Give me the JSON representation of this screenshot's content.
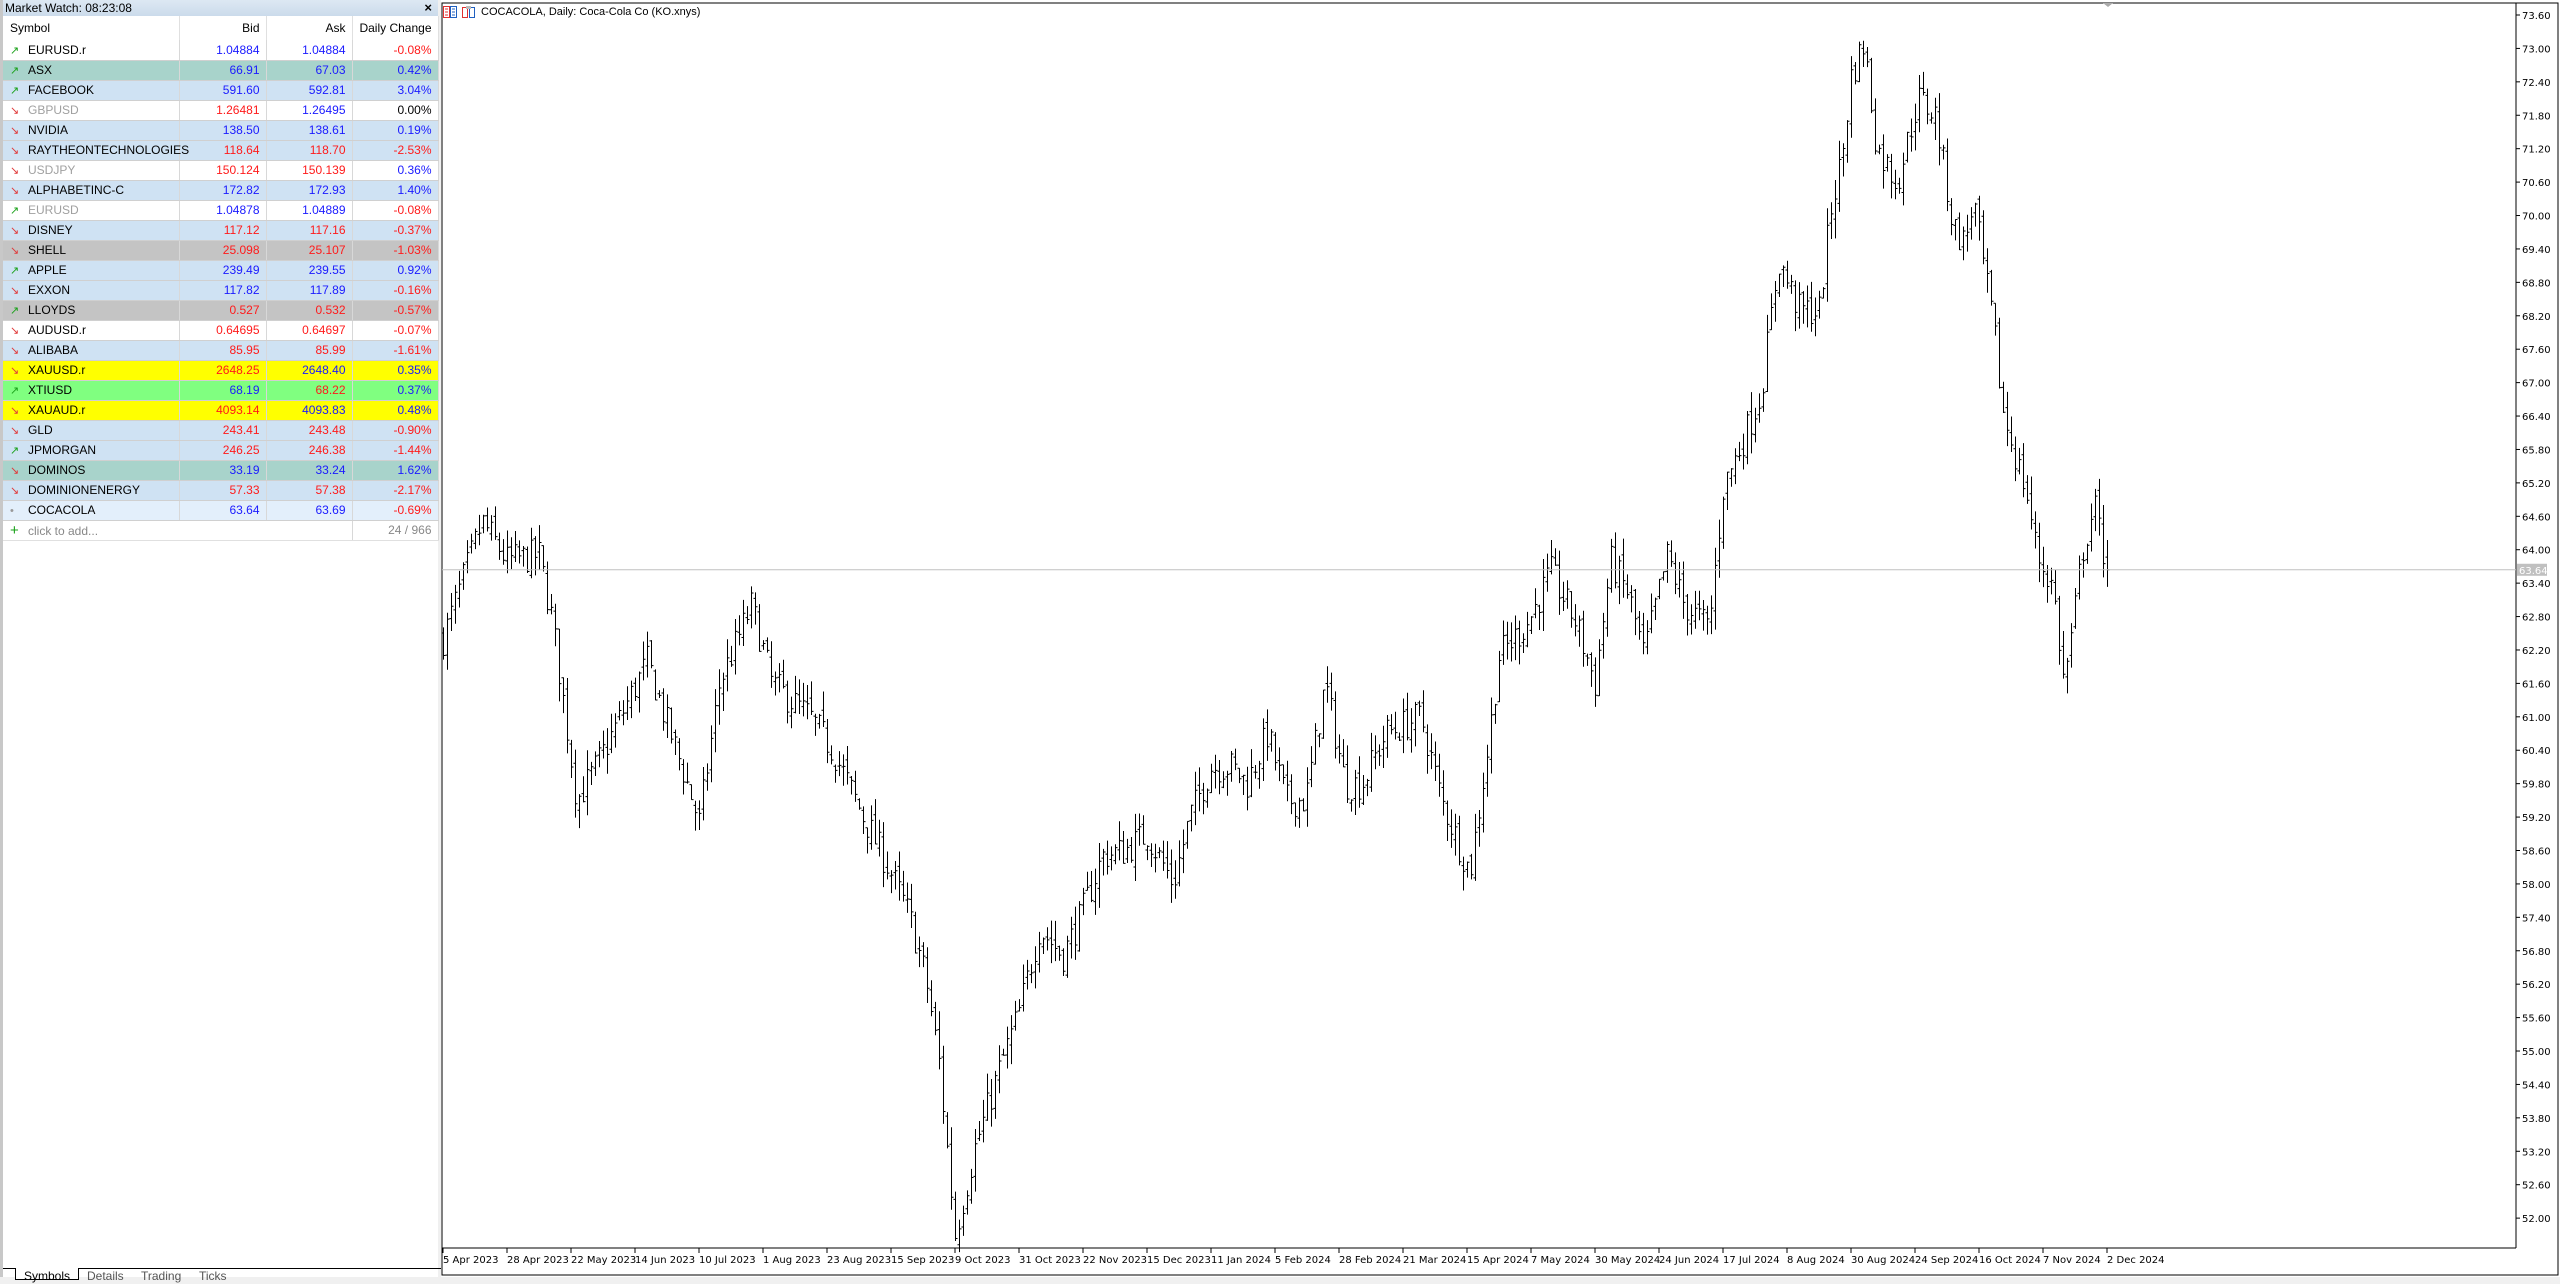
{
  "market_watch": {
    "title": "Market Watch: 08:23:08",
    "close_label": "×",
    "columns": [
      "Symbol",
      "Bid",
      "Ask",
      "Daily Change"
    ],
    "rows": [
      {
        "symbol": "EURUSD.r",
        "dir": "up",
        "bid": "1.04884",
        "ask": "1.04884",
        "change": "-0.08%",
        "c": [
          "up",
          "up",
          "down"
        ],
        "bg": "#ffffff"
      },
      {
        "symbol": "ASX",
        "dir": "up",
        "bid": "66.91",
        "ask": "67.03",
        "change": "0.42%",
        "c": [
          "up",
          "up",
          "up"
        ],
        "bg": "#a8d3cb"
      },
      {
        "symbol": "FACEBOOK",
        "dir": "up",
        "bid": "591.60",
        "ask": "592.81",
        "change": "3.04%",
        "c": [
          "up",
          "up",
          "up"
        ],
        "bg": "#cfe2f3"
      },
      {
        "symbol": "GBPUSD",
        "dir": "down",
        "closed": true,
        "bid": "1.26481",
        "ask": "1.26495",
        "change": "0.00%",
        "c": [
          "down",
          "up",
          "flat"
        ],
        "bg": "#ffffff"
      },
      {
        "symbol": "NVIDIA",
        "dir": "down",
        "bid": "138.50",
        "ask": "138.61",
        "change": "0.19%",
        "c": [
          "up",
          "up",
          "up"
        ],
        "bg": "#cfe2f3"
      },
      {
        "symbol": "RAYTHEONTECHNOLOGIES",
        "dir": "down",
        "bid": "118.64",
        "ask": "118.70",
        "change": "-2.53%",
        "c": [
          "down",
          "down",
          "down"
        ],
        "bg": "#cfe2f3"
      },
      {
        "symbol": "USDJPY",
        "dir": "down",
        "closed": true,
        "bid": "150.124",
        "ask": "150.139",
        "change": "0.36%",
        "c": [
          "down",
          "down",
          "up"
        ],
        "bg": "#ffffff"
      },
      {
        "symbol": "ALPHABETINC-C",
        "dir": "down",
        "bid": "172.82",
        "ask": "172.93",
        "change": "1.40%",
        "c": [
          "up",
          "up",
          "up"
        ],
        "bg": "#cfe2f3"
      },
      {
        "symbol": "EURUSD",
        "dir": "up",
        "closed": true,
        "bid": "1.04878",
        "ask": "1.04889",
        "change": "-0.08%",
        "c": [
          "up",
          "up",
          "down"
        ],
        "bg": "#ffffff"
      },
      {
        "symbol": "DISNEY",
        "dir": "down",
        "bid": "117.12",
        "ask": "117.16",
        "change": "-0.37%",
        "c": [
          "down",
          "down",
          "down"
        ],
        "bg": "#cfe2f3"
      },
      {
        "symbol": "SHELL",
        "dir": "down",
        "bid": "25.098",
        "ask": "25.107",
        "change": "-1.03%",
        "c": [
          "down",
          "down",
          "down"
        ],
        "bg": "#c4c4c4"
      },
      {
        "symbol": "APPLE",
        "dir": "up",
        "bid": "239.49",
        "ask": "239.55",
        "change": "0.92%",
        "c": [
          "up",
          "up",
          "up"
        ],
        "bg": "#cfe2f3"
      },
      {
        "symbol": "EXXON",
        "dir": "down",
        "bid": "117.82",
        "ask": "117.89",
        "change": "-0.16%",
        "c": [
          "up",
          "up",
          "down"
        ],
        "bg": "#cfe2f3"
      },
      {
        "symbol": "LLOYDS",
        "dir": "up",
        "bid": "0.527",
        "ask": "0.532",
        "change": "-0.57%",
        "c": [
          "down",
          "down",
          "down"
        ],
        "bg": "#c4c4c4"
      },
      {
        "symbol": "AUDUSD.r",
        "dir": "down",
        "bid": "0.64695",
        "ask": "0.64697",
        "change": "-0.07%",
        "c": [
          "down",
          "down",
          "down"
        ],
        "bg": "#ffffff"
      },
      {
        "symbol": "ALIBABA",
        "dir": "down",
        "bid": "85.95",
        "ask": "85.99",
        "change": "-1.61%",
        "c": [
          "down",
          "down",
          "down"
        ],
        "bg": "#cfe2f3"
      },
      {
        "symbol": "XAUUSD.r",
        "dir": "down",
        "bid": "2648.25",
        "ask": "2648.40",
        "change": "0.35%",
        "c": [
          "down",
          "up",
          "up"
        ],
        "bg": "#ffff00"
      },
      {
        "symbol": "XTIUSD",
        "dir": "up",
        "bid": "68.19",
        "ask": "68.22",
        "change": "0.37%",
        "c": [
          "up",
          "down",
          "up"
        ],
        "bg": "#80ff80"
      },
      {
        "symbol": "XAUAUD.r",
        "dir": "down",
        "bid": "4093.14",
        "ask": "4093.83",
        "change": "0.48%",
        "c": [
          "down",
          "up",
          "up"
        ],
        "bg": "#ffff00"
      },
      {
        "symbol": "GLD",
        "dir": "down",
        "bid": "243.41",
        "ask": "243.48",
        "change": "-0.90%",
        "c": [
          "down",
          "down",
          "down"
        ],
        "bg": "#cfe2f3"
      },
      {
        "symbol": "JPMORGAN",
        "dir": "up",
        "bid": "246.25",
        "ask": "246.38",
        "change": "-1.44%",
        "c": [
          "down",
          "down",
          "down"
        ],
        "bg": "#cfe2f3"
      },
      {
        "symbol": "DOMINOS",
        "dir": "down",
        "bid": "33.19",
        "ask": "33.24",
        "change": "1.62%",
        "c": [
          "up",
          "up",
          "up"
        ],
        "bg": "#a8d3cb"
      },
      {
        "symbol": "DOMINIONENERGY",
        "dir": "down",
        "bid": "57.33",
        "ask": "57.38",
        "change": "-2.17%",
        "c": [
          "down",
          "down",
          "down"
        ],
        "bg": "#cfe2f3"
      },
      {
        "symbol": "COCACOLA",
        "dir": "flat",
        "bid": "63.64",
        "ask": "63.69",
        "change": "-0.69%",
        "c": [
          "up",
          "up",
          "down"
        ],
        "bg": "#e3effb"
      }
    ],
    "add_label": "click to add...",
    "count_label": "24 / 966",
    "tabs": [
      "Symbols",
      "Details",
      "Trading",
      "Ticks"
    ]
  },
  "chart": {
    "title": "COCACOLA, Daily:  Coca-Cola Co (KO.xnys)",
    "icons": [
      "market-depth-icon",
      "one-click-trading-icon"
    ]
  },
  "chart_data": {
    "type": "ohlc",
    "symbol": "COCACOLA",
    "timeframe": "Daily",
    "current_price": 63.64,
    "current_price_label": "63.64",
    "ylim": [
      51.7,
      73.7
    ],
    "y_ticks": [
      "73.60",
      "73.00",
      "72.40",
      "71.80",
      "71.20",
      "70.60",
      "70.00",
      "69.40",
      "68.80",
      "68.20",
      "67.60",
      "67.00",
      "66.40",
      "65.80",
      "65.20",
      "64.60",
      "64.00",
      "63.40",
      "62.80",
      "62.20",
      "61.60",
      "61.00",
      "60.40",
      "59.80",
      "59.20",
      "58.60",
      "58.00",
      "57.40",
      "56.80",
      "56.20",
      "55.60",
      "55.00",
      "54.40",
      "53.80",
      "53.20",
      "52.60",
      "52.00"
    ],
    "x_ticks": [
      "5 Apr 2023",
      "28 Apr 2023",
      "22 May 2023",
      "14 Jun 2023",
      "10 Jul 2023",
      "1 Aug 2023",
      "23 Aug 2023",
      "15 Sep 2023",
      "9 Oct 2023",
      "31 Oct 2023",
      "22 Nov 2023",
      "15 Dec 2023",
      "11 Jan 2024",
      "5 Feb 2024",
      "28 Feb 2024",
      "21 Mar 2024",
      "15 Apr 2024",
      "7 May 2024",
      "30 May 2024",
      "24 Jun 2024",
      "17 Jul 2024",
      "8 Aug 2024",
      "30 Aug 2024",
      "24 Sep 2024",
      "16 Oct 2024",
      "7 Nov 2024",
      "2 Dec 2024"
    ],
    "price_path": [
      [
        "2023-04-05",
        62.4
      ],
      [
        "2023-04-19",
        64.5
      ],
      [
        "2023-04-28",
        63.8
      ],
      [
        "2023-05-10",
        63.9
      ],
      [
        "2023-05-15",
        62.7
      ],
      [
        "2023-05-19",
        61.3
      ],
      [
        "2023-05-24",
        59.5
      ],
      [
        "2023-05-31",
        60.1
      ],
      [
        "2023-06-19",
        62.0
      ],
      [
        "2023-06-26",
        61.0
      ],
      [
        "2023-07-03",
        60.1
      ],
      [
        "2023-07-10",
        59.1
      ],
      [
        "2023-07-17",
        61.6
      ],
      [
        "2023-07-28",
        63.0
      ],
      [
        "2023-08-04",
        61.6
      ],
      [
        "2023-08-17",
        61.0
      ],
      [
        "2023-08-25",
        60.4
      ],
      [
        "2023-09-05",
        59.2
      ],
      [
        "2023-09-14",
        58.3
      ],
      [
        "2023-09-22",
        57.4
      ],
      [
        "2023-09-28",
        56.3
      ],
      [
        "2023-10-03",
        54.8
      ],
      [
        "2023-10-09",
        51.7
      ],
      [
        "2023-10-16",
        53.3
      ],
      [
        "2023-10-25",
        54.8
      ],
      [
        "2023-10-31",
        55.7
      ],
      [
        "2023-11-07",
        57.2
      ],
      [
        "2023-11-15",
        56.7
      ],
      [
        "2023-11-21",
        57.4
      ],
      [
        "2023-11-29",
        58.5
      ],
      [
        "2023-12-07",
        58.6
      ],
      [
        "2023-12-15",
        58.9
      ],
      [
        "2023-12-26",
        58.0
      ],
      [
        "2024-01-02",
        59.2
      ],
      [
        "2024-01-11",
        60.1
      ],
      [
        "2024-01-19",
        60.1
      ],
      [
        "2024-01-25",
        59.8
      ],
      [
        "2024-02-02",
        60.7
      ],
      [
        "2024-02-09",
        59.5
      ],
      [
        "2024-02-16",
        59.5
      ],
      [
        "2024-02-23",
        61.6
      ],
      [
        "2024-03-01",
        59.8
      ],
      [
        "2024-03-07",
        59.8
      ],
      [
        "2024-03-15",
        60.7
      ],
      [
        "2024-03-28",
        61.0
      ],
      [
        "2024-04-05",
        59.5
      ],
      [
        "2024-04-16",
        58.2
      ],
      [
        "2024-04-22",
        60.4
      ],
      [
        "2024-04-26",
        62.1
      ],
      [
        "2024-05-06",
        62.7
      ],
      [
        "2024-05-14",
        63.6
      ],
      [
        "2024-05-23",
        62.7
      ],
      [
        "2024-05-30",
        61.6
      ],
      [
        "2024-06-05",
        63.8
      ],
      [
        "2024-06-12",
        63.2
      ],
      [
        "2024-06-18",
        62.1
      ],
      [
        "2024-06-27",
        63.9
      ],
      [
        "2024-07-03",
        63.0
      ],
      [
        "2024-07-12",
        62.6
      ],
      [
        "2024-07-17",
        65.1
      ],
      [
        "2024-07-24",
        66.0
      ],
      [
        "2024-07-30",
        66.8
      ],
      [
        "2024-08-05",
        69.2
      ],
      [
        "2024-08-12",
        68.3
      ],
      [
        "2024-08-19",
        68.3
      ],
      [
        "2024-08-23",
        70.1
      ],
      [
        "2024-08-27",
        71.1
      ],
      [
        "2024-08-30",
        72.5
      ],
      [
        "2024-09-04",
        73.1
      ],
      [
        "2024-09-09",
        71.2
      ],
      [
        "2024-09-17",
        70.6
      ],
      [
        "2024-09-25",
        72.1
      ],
      [
        "2024-10-01",
        71.8
      ],
      [
        "2024-10-07",
        69.8
      ],
      [
        "2024-10-11",
        69.5
      ],
      [
        "2024-10-14",
        70.3
      ],
      [
        "2024-10-18",
        68.9
      ],
      [
        "2024-10-21",
        68.0
      ],
      [
        "2024-10-24",
        66.5
      ],
      [
        "2024-10-30",
        65.4
      ],
      [
        "2024-11-01",
        65.1
      ],
      [
        "2024-11-05",
        63.9
      ],
      [
        "2024-11-11",
        63.3
      ],
      [
        "2024-11-15",
        61.6
      ],
      [
        "2024-11-18",
        62.4
      ],
      [
        "2024-11-22",
        63.9
      ],
      [
        "2024-11-27",
        64.8
      ],
      [
        "2024-12-02",
        63.6
      ]
    ],
    "colors": {
      "bars": "#000000",
      "price_line": "#c0c0c0",
      "background": "#ffffff"
    },
    "grid": false
  }
}
